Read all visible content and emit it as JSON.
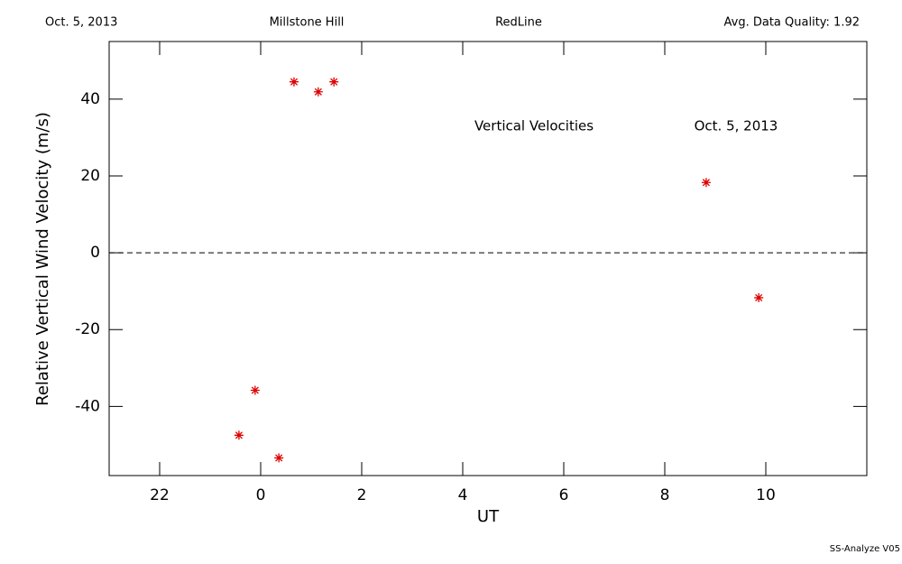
{
  "chart_data": {
    "type": "scatter",
    "header": [
      "Oct. 5, 2013",
      "Millstone Hill",
      "RedLine",
      "Avg. Data Quality: 1.92"
    ],
    "annotations": [
      "Vertical Velocities",
      "Oct. 5, 2013"
    ],
    "footer": "SS-Analyze V05",
    "x_label": "UT",
    "y_label": "Relative Vertical Wind Velocity (m/s)",
    "xlim": [
      -3,
      12
    ],
    "xticks": [
      {
        "value": -2,
        "label": "22"
      },
      0,
      2,
      4,
      6,
      8,
      10
    ],
    "ylim": [
      -58,
      55
    ],
    "yticks": [
      -40,
      -20,
      0,
      20,
      40
    ],
    "zero_line": true,
    "series": [
      {
        "color": "#dd0000",
        "x": [
          0.66,
          1.14,
          1.45,
          8.82,
          9.86,
          -0.11,
          -0.43,
          0.36
        ],
        "values": [
          44.5,
          41.9,
          44.5,
          18.3,
          -11.7,
          -35.8,
          -47.5,
          -53.4
        ]
      }
    ]
  }
}
